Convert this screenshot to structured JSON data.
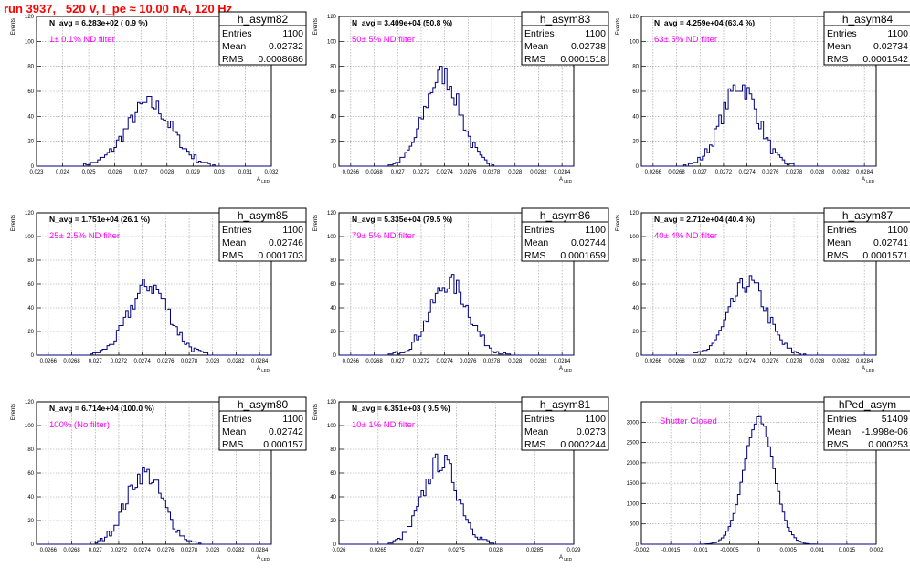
{
  "page": {
    "title": "run 3937,   520 V, I_pe ≈ 10.00 nA, 120 Hz"
  },
  "chart_data": [
    {
      "type": "bar",
      "name": "h_asym82",
      "n_avg": "N_avg = 6.283e+02 ( 0.9 %)",
      "filter": "1± 0.1% ND filter",
      "stats": {
        "entries_label": "Entries",
        "entries": "1100",
        "mean_label": "Mean",
        "mean": "0.02732",
        "rms_label": "RMS",
        "rms": "0.0008686"
      },
      "xlim": [
        0.023,
        0.032
      ],
      "ylim": [
        0,
        120
      ],
      "xticks": [
        "0.023",
        "0.024",
        "0.025",
        "0.026",
        "0.027",
        "0.028",
        "0.029",
        "0.03",
        "0.031",
        "0.032"
      ],
      "yticks": [
        "0",
        "20",
        "40",
        "60",
        "80",
        "100",
        "120"
      ],
      "ylabel": "Events",
      "xlabel": "A",
      "xlabel_sub": "LED",
      "mean_val": 0.02732,
      "rms_val": 0.0008686,
      "peak": 50
    },
    {
      "type": "bar",
      "name": "h_asym83",
      "n_avg": "N_avg = 3.409e+04 (50.8 %)",
      "filter": "50± 5% ND filter",
      "stats": {
        "entries_label": "Entries",
        "entries": "1100",
        "mean_label": "Mean",
        "mean": "0.02738",
        "rms_label": "RMS",
        "rms": "0.0001518"
      },
      "xlim": [
        0.0265,
        0.0285
      ],
      "ylim": [
        0,
        120
      ],
      "xticks": [
        "0.0266",
        "0.0268",
        "0.027",
        "0.0272",
        "0.0274",
        "0.0276",
        "0.0278",
        "0.028",
        "0.0282",
        "0.0284"
      ],
      "yticks": [
        "0",
        "20",
        "40",
        "60",
        "80",
        "100",
        "120"
      ],
      "ylabel": "Events",
      "xlabel": "A",
      "xlabel_sub": "LED",
      "mean_val": 0.02738,
      "rms_val": 0.0001518,
      "peak": 73
    },
    {
      "type": "bar",
      "name": "h_asym84",
      "n_avg": "N_avg = 4.259e+04 (63.4 %)",
      "filter": "63± 5% ND filter",
      "stats": {
        "entries_label": "Entries",
        "entries": "1100",
        "mean_label": "Mean",
        "mean": "0.02734",
        "rms_label": "RMS",
        "rms": "0.0001542"
      },
      "xlim": [
        0.0265,
        0.0285
      ],
      "ylim": [
        0,
        120
      ],
      "xticks": [
        "0.0266",
        "0.0268",
        "0.027",
        "0.0272",
        "0.0274",
        "0.0276",
        "0.0278",
        "0.028",
        "0.0282",
        "0.0284"
      ],
      "yticks": [
        "0",
        "20",
        "40",
        "60",
        "80",
        "100",
        "120"
      ],
      "ylabel": "Events",
      "xlabel": "A",
      "xlabel_sub": "LED",
      "mean_val": 0.02734,
      "rms_val": 0.0001542,
      "peak": 65
    },
    {
      "type": "bar",
      "name": "h_asym85",
      "n_avg": "N_avg = 1.751e+04 (26.1 %)",
      "filter": "25± 2.5% ND filter",
      "stats": {
        "entries_label": "Entries",
        "entries": "1100",
        "mean_label": "Mean",
        "mean": "0.02746",
        "rms_label": "RMS",
        "rms": "0.0001703"
      },
      "xlim": [
        0.0265,
        0.0285
      ],
      "ylim": [
        0,
        120
      ],
      "xticks": [
        "0.0266",
        "0.0268",
        "0.027",
        "0.0272",
        "0.0274",
        "0.0276",
        "0.0278",
        "0.028",
        "0.0282",
        "0.0284"
      ],
      "yticks": [
        "0",
        "20",
        "40",
        "60",
        "80",
        "100",
        "120"
      ],
      "ylabel": "Events",
      "xlabel": "A",
      "xlabel_sub": "LED",
      "mean_val": 0.02746,
      "rms_val": 0.0001703,
      "peak": 59
    },
    {
      "type": "bar",
      "name": "h_asym86",
      "n_avg": "N_avg = 5.335e+04 (79.5 %)",
      "filter": "79± 5% ND filter",
      "stats": {
        "entries_label": "Entries",
        "entries": "1100",
        "mean_label": "Mean",
        "mean": "0.02744",
        "rms_label": "RMS",
        "rms": "0.0001659"
      },
      "xlim": [
        0.0265,
        0.0285
      ],
      "ylim": [
        0,
        120
      ],
      "xticks": [
        "0.0266",
        "0.0268",
        "0.027",
        "0.0272",
        "0.0274",
        "0.0276",
        "0.0278",
        "0.028",
        "0.0282",
        "0.0284"
      ],
      "yticks": [
        "0",
        "20",
        "40",
        "60",
        "80",
        "100",
        "120"
      ],
      "ylabel": "Events",
      "xlabel": "A",
      "xlabel_sub": "LED",
      "mean_val": 0.02744,
      "rms_val": 0.0001659,
      "peak": 61
    },
    {
      "type": "bar",
      "name": "h_asym87",
      "n_avg": "N_avg = 2.712e+04 (40.4 %)",
      "filter": "40± 4% ND filter",
      "stats": {
        "entries_label": "Entries",
        "entries": "1100",
        "mean_label": "Mean",
        "mean": "0.02741",
        "rms_label": "RMS",
        "rms": "0.0001571"
      },
      "xlim": [
        0.0265,
        0.0285
      ],
      "ylim": [
        0,
        120
      ],
      "xticks": [
        "0.0266",
        "0.0268",
        "0.027",
        "0.0272",
        "0.0274",
        "0.0276",
        "0.0278",
        "0.028",
        "0.0282",
        "0.0284"
      ],
      "yticks": [
        "0",
        "20",
        "40",
        "60",
        "80",
        "100",
        "120"
      ],
      "ylabel": "Events",
      "xlabel": "A",
      "xlabel_sub": "LED",
      "mean_val": 0.02741,
      "rms_val": 0.0001571,
      "peak": 61
    },
    {
      "type": "bar",
      "name": "h_asym80",
      "n_avg": "N_avg = 6.714e+04 (100.0 %)",
      "filter": "100% (No filter)",
      "stats": {
        "entries_label": "Entries",
        "entries": "1100",
        "mean_label": "Mean",
        "mean": "0.02742",
        "rms_label": "RMS",
        "rms": "0.000157"
      },
      "xlim": [
        0.0265,
        0.0285
      ],
      "ylim": [
        0,
        120
      ],
      "xticks": [
        "0.0266",
        "0.0268",
        "0.027",
        "0.0272",
        "0.0274",
        "0.0276",
        "0.0278",
        "0.028",
        "0.0282",
        "0.0284"
      ],
      "yticks": [
        "0",
        "20",
        "40",
        "60",
        "80",
        "100",
        "120"
      ],
      "ylabel": "Events",
      "xlabel": "A",
      "xlabel_sub": "LED",
      "mean_val": 0.02742,
      "rms_val": 0.000157,
      "peak": 60
    },
    {
      "type": "bar",
      "name": "h_asym81",
      "n_avg": "N_avg = 6.351e+03 ( 9.5 %)",
      "filter": "10± 1% ND filter",
      "stats": {
        "entries_label": "Entries",
        "entries": "1100",
        "mean_label": "Mean",
        "mean": "0.0273",
        "rms_label": "RMS",
        "rms": "0.0002244"
      },
      "xlim": [
        0.026,
        0.029
      ],
      "ylim": [
        0,
        120
      ],
      "xticks": [
        "0.026",
        "0.0265",
        "0.027",
        "0.0275",
        "0.028",
        "0.0285",
        "0.029"
      ],
      "yticks": [
        "0",
        "20",
        "40",
        "60",
        "80",
        "100",
        "120"
      ],
      "ylabel": "Events",
      "xlabel": "A",
      "xlabel_sub": "LED",
      "mean_val": 0.0273,
      "rms_val": 0.0002244,
      "peak": 70
    },
    {
      "type": "bar",
      "name": "hPed_asym",
      "n_avg": "",
      "filter": "Shutter Closed",
      "stats": {
        "entries_label": "Entries",
        "entries": "51409",
        "mean_label": "Mean",
        "mean": "-1.998e-06",
        "rms_label": "RMS",
        "rms": "0.000253"
      },
      "xlim": [
        -0.002,
        0.002
      ],
      "ylim": [
        0,
        3500
      ],
      "xticks": [
        "-0.002",
        "-0.0015",
        "-0.001",
        "-0.0005",
        "0",
        "0.0005",
        "0.001",
        "0.0015",
        "0.002"
      ],
      "yticks": [
        "0",
        "500",
        "1000",
        "1500",
        "2000",
        "2500",
        "3000"
      ],
      "ylabel": "",
      "xlabel": "",
      "xlabel_sub": "",
      "mean_val": 0.0,
      "rms_val": 0.000253,
      "peak": 3100
    }
  ],
  "colors": {
    "hist": "#00007f",
    "grid": "#9a9a9a",
    "filter": "#ff00ff",
    "title": "#ff0000"
  }
}
